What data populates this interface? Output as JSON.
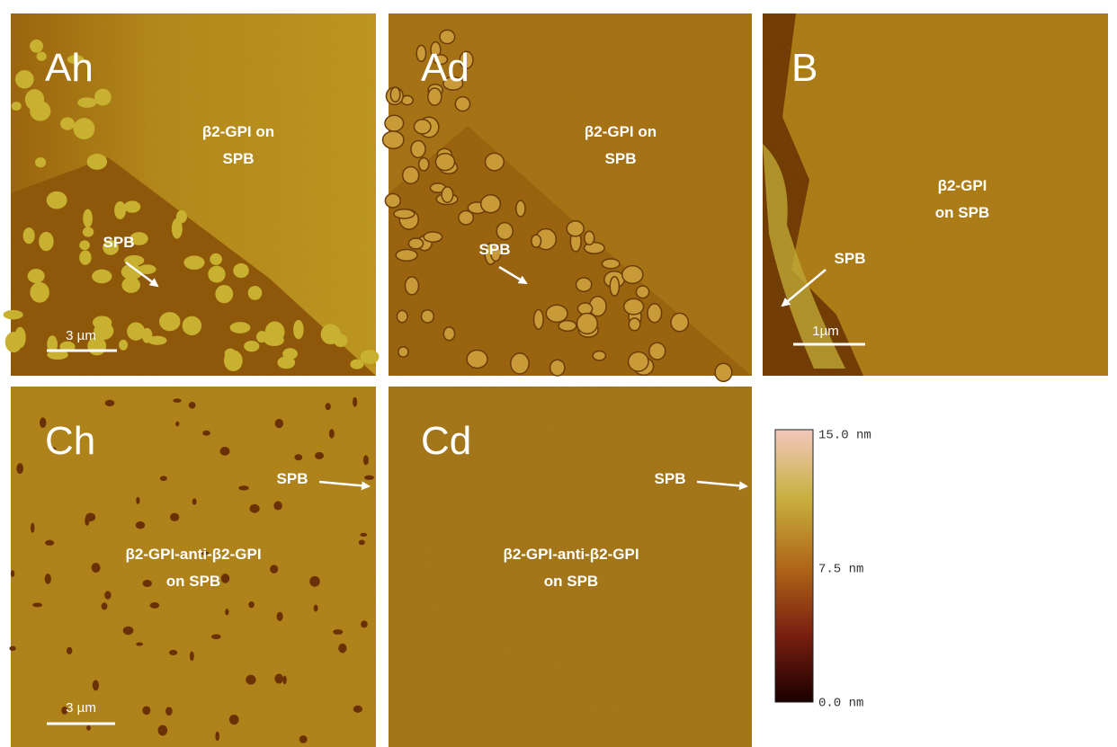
{
  "panels": [
    {
      "label": "Ah",
      "annotation": [
        "β2-GPI on",
        "SPB"
      ],
      "arrow_label": "SPB",
      "scale_bar": "3 µm"
    },
    {
      "label": "Ad",
      "annotation": [
        "β2-GPI on",
        "SPB"
      ],
      "arrow_label": "SPB"
    },
    {
      "label": "B",
      "annotation": [
        "β2-GPI",
        "on SPB"
      ],
      "arrow_label": "SPB",
      "scale_bar": "1µm"
    },
    {
      "label": "Ch",
      "annotation": [
        "β2-GPI-anti-β2-GPI",
        "on SPB"
      ],
      "arrow_label": "SPB",
      "scale_bar": "3 µm"
    },
    {
      "label": "Cd",
      "annotation": [
        "β2-GPI-anti-β2-GPI",
        "on SPB"
      ],
      "arrow_label": "SPB"
    }
  ],
  "colorbar": {
    "ticks": [
      "15.0 nm",
      "7.5 nm",
      "0.0 nm"
    ]
  }
}
